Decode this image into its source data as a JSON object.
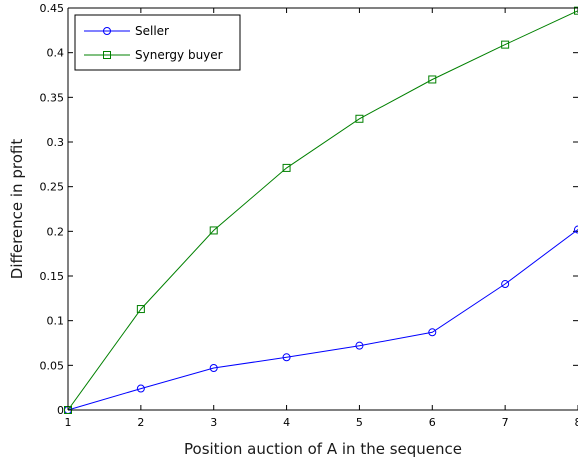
{
  "chart_data": {
    "type": "line",
    "xlabel": "Position auction of A in the sequence",
    "ylabel": "Difference in profit",
    "xlim": [
      1,
      8
    ],
    "ylim": [
      0,
      0.45
    ],
    "x_ticks": [
      "1",
      "2",
      "3",
      "4",
      "5",
      "6",
      "7",
      "8"
    ],
    "y_ticks": [
      "0",
      "0.05",
      "0.1",
      "0.15",
      "0.2",
      "0.25",
      "0.3",
      "0.35",
      "0.4",
      "0.45"
    ],
    "x": [
      1,
      2,
      3,
      4,
      5,
      6,
      7,
      8
    ],
    "series": [
      {
        "name": "Seller",
        "color": "#0000ff",
        "marker": "circle",
        "values": [
          0.0,
          0.024,
          0.047,
          0.059,
          0.072,
          0.087,
          0.141,
          0.202
        ]
      },
      {
        "name": "Synergy buyer",
        "color": "#008000",
        "marker": "square",
        "values": [
          0.0,
          0.113,
          0.201,
          0.271,
          0.326,
          0.37,
          0.409,
          0.447
        ]
      }
    ],
    "grid": false,
    "legend_position": "top-left"
  }
}
